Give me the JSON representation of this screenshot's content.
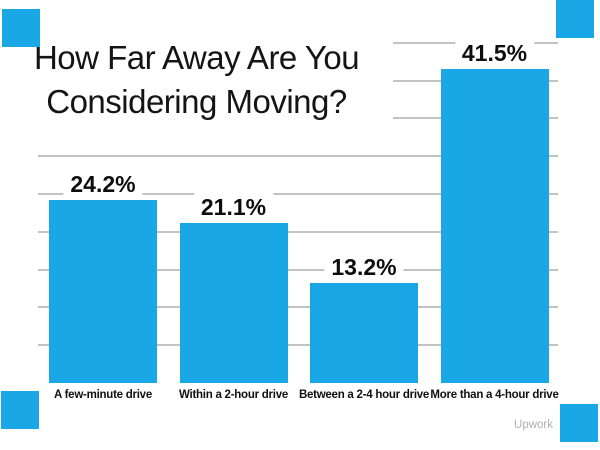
{
  "title": {
    "line1": "How Far Away Are You",
    "line2": "Considering Moving?"
  },
  "attribution": {
    "label": "Upwork"
  },
  "colors": {
    "background": "#FFFFFF",
    "bar": "#19A7E6",
    "corner_accent": "#19A7E6",
    "gridline": "#C3C3C3",
    "title_text": "#141414",
    "value_label_text": "#0D0D0D",
    "category_label_text": "#101010",
    "attribution_text": "#B0B0B0"
  },
  "chart_data": {
    "type": "bar",
    "title": "How Far Away Are You Considering Moving?",
    "categories": [
      "A few-minute drive",
      "Within a 2-hour drive",
      "Between a 2-4 hour drive",
      "More than a 4-hour drive"
    ],
    "values": [
      24.2,
      21.1,
      13.2,
      41.5
    ],
    "value_labels": [
      "24.2%",
      "21.1%",
      "13.2%",
      "41.5%"
    ],
    "xlabel": "",
    "ylabel": "",
    "ylim": [
      0,
      45
    ],
    "gridline_step_pct": 5,
    "grid": true,
    "legend": false,
    "bar_color": "#19A7E6",
    "source": "Upwork"
  }
}
